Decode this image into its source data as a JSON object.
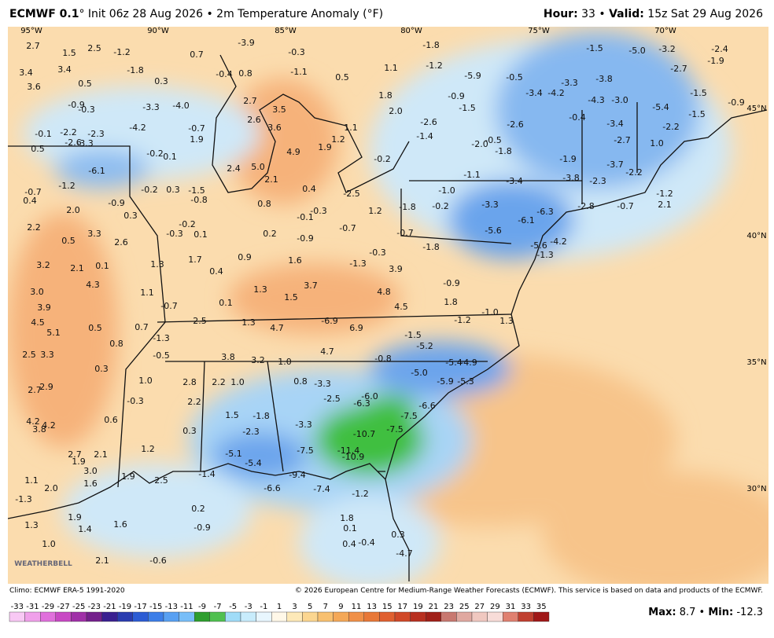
{
  "header": {
    "model": "ECMWF 0.1",
    "init": "° Init 06z 28 Aug 2026 • 2m Temperature Anomaly (°F)",
    "hour_label": "Hour:",
    "hour": "33 •",
    "valid_label": "Valid:",
    "valid": "15z Sat 29 Aug 2026"
  },
  "map": {
    "lon_labels": [
      "95°W",
      "90°W",
      "85°W",
      "80°W",
      "75°W",
      "70°W"
    ],
    "lat_labels": [
      "45°N",
      "40°N",
      "35°N",
      "30°N"
    ],
    "logo": "WEATHERBELL",
    "point_values": [
      2.7,
      1.5,
      2.5,
      -1.2,
      3.4,
      3.4,
      3.6,
      0.5,
      -1.8,
      0.3,
      -3.3,
      {
        "value": -4,
        "label": "-4.0"
      },
      -0.9,
      -0.3,
      -0.1,
      -2.2,
      -2.3,
      -2.6,
      -3.3,
      -4.2,
      0.5,
      -6.1,
      -0.2,
      0.1,
      -0.7,
      1.9,
      -1.2,
      -0.7,
      0.4,
      {
        "value": 2,
        "label": "2.0"
      },
      -0.9,
      -0.2,
      0.3,
      -1.5,
      -0.8,
      0.3,
      2.2,
      0.5,
      3.3,
      2.6,
      -0.2,
      0.1,
      -0.3,
      3.2,
      2.1,
      0.1,
      4.3,
      1.3,
      1.7,
      {
        "value": 3,
        "label": "3.0"
      },
      1.1,
      3.9,
      -0.7,
      4.5,
      5.1,
      0.5,
      0.7,
      0.8,
      -1.3,
      2.5,
      3.3,
      0.3,
      -0.5,
      -3.9,
      0.7,
      -0.3,
      -0.4,
      0.8,
      -1.1,
      2.7,
      3.5,
      2.6,
      3.6,
      4.9,
      2.4,
      {
        "value": 5,
        "label": "5.0"
      },
      2.1,
      0.4,
      0.8,
      0.2,
      0.9,
      0.4,
      0.1,
      1.3,
      1.5,
      3.7,
      2.5,
      1.3,
      4.7,
      -6.9,
      6.9,
      4.7,
      3.8,
      3.2,
      {
        "value": 1,
        "label": "1.0"
      },
      2.8,
      2.2,
      {
        "value": 1,
        "label": "1.0"
      },
      2.2,
      1.5,
      -1.8,
      0.3,
      -2.3,
      1.2,
      -5.1,
      -5.4,
      -1.4,
      0.5,
      1.1,
      1.9,
      1.2,
      -0.2,
      -2.5,
      1.2,
      -0.3,
      -0.1,
      -0.7,
      -0.9,
      1.6,
      -1.3,
      -0.3,
      3.9,
      4.8,
      4.5,
      1.8,
      -0.9,
      1.1,
      1.8,
      {
        "value": 2,
        "label": "2.0"
      },
      -2.6,
      -1.4,
      -1.8,
      -1.2,
      -0.9,
      -1.5,
      -5.9,
      -0.5,
      -3.3,
      -3.4,
      -4.2,
      -3.8,
      -4.3,
      {
        "value": -3,
        "label": "-3.0"
      },
      -0.4,
      -3.4,
      -2.7,
      -1.9,
      -3.7,
      -2.2,
      -3.8,
      -2.3,
      -0.7,
      -2.8,
      -1.2,
      2.1,
      -1.5,
      {
        "value": -5,
        "label": "-5.0"
      },
      -3.2,
      -2.4,
      -1.9,
      -2.7,
      -1.5,
      -5.4,
      -2.2,
      -1.5,
      {
        "value": 1,
        "label": "1.0"
      },
      -0.9,
      {
        "value": -2,
        "label": "-2.0"
      },
      -0.5,
      -2.6,
      -1.8,
      -1.1,
      -3.4,
      {
        "value": -1,
        "label": "-1.0"
      },
      -0.2,
      -3.3,
      -6.3,
      -6.1,
      -5.6,
      -5.6,
      -4.2,
      -1.3,
      -1.8,
      -0.7,
      -1.8,
      {
        "value": -1,
        "label": "-1.0"
      },
      1.3,
      -1.2,
      -1.5,
      -5.2,
      -0.8,
      -5.4,
      -4.9,
      {
        "value": -5,
        "label": "-5.0"
      },
      -5.9,
      -5.3,
      -3.3,
      -2.5,
      0.8,
      {
        "value": -6,
        "label": "-6.0"
      },
      -6.3,
      -7.5,
      -6.6,
      -7.5,
      -10.7,
      -3.3,
      -7.5,
      -11.4,
      -10.9,
      -9.4,
      -6.6,
      -7.4,
      -1.2,
      0.2,
      -0.9,
      -0.6,
      1.8,
      0.1,
      -0.4,
      0.4,
      0.3,
      -4.7,
      -1.3,
      {
        "value": 2,
        "label": "2.0"
      },
      1.3,
      1.9,
      1.4,
      1.6,
      {
        "value": 1,
        "label": "1.0"
      },
      2.1,
      1.9,
      2.5,
      1.6,
      {
        "value": 3,
        "label": "3.0"
      },
      1.9,
      2.7,
      2.1,
      1.1,
      4.2,
      3.8,
      4.2,
      2.7,
      2.9,
      0.6,
      {
        "value": 1,
        "label": "1.0"
      },
      -0.3
    ]
  },
  "footer": {
    "climo": "Climo: ECMWF ERA-5 1991-2020",
    "copyright": "© 2026 European Centre for Medium-Range Weather Forecasts (ECMWF). This service is based on data and products of the ECMWF."
  },
  "colorbar": {
    "ticks": [
      -33,
      -31,
      -29,
      -27,
      -25,
      -23,
      -21,
      -19,
      -17,
      -15,
      -13,
      -11,
      -9,
      -7,
      -5,
      -3,
      -1,
      1,
      3,
      5,
      7,
      9,
      11,
      13,
      15,
      17,
      19,
      21,
      23,
      25,
      27,
      29,
      31,
      33,
      35
    ],
    "colors": [
      "#f8c8f4",
      "#f0a0ea",
      "#e070dc",
      "#c848c4",
      "#a030a8",
      "#74208c",
      "#3a2090",
      "#2a3cb0",
      "#2c5cd4",
      "#3c7ee8",
      "#58a0f2",
      "#78bef8",
      "#2e9e2e",
      "#50c050",
      "#a0dcf8",
      "#c8ecfc",
      "#e8f6fe",
      "#fff8e8",
      "#fde9b8",
      "#fbd690",
      "#f8c070",
      "#f4a858",
      "#f09048",
      "#e87838",
      "#e06030",
      "#d04828",
      "#b83020",
      "#a02018",
      "#c87870",
      "#e0a8a0",
      "#f0c8c0",
      "#f8dcd8",
      "#e08070",
      "#c04030",
      "#a01818"
    ],
    "max_label": "Max:",
    "max": 8.7,
    "sep": "•",
    "min_label": "Min:",
    "min": -12.3
  }
}
